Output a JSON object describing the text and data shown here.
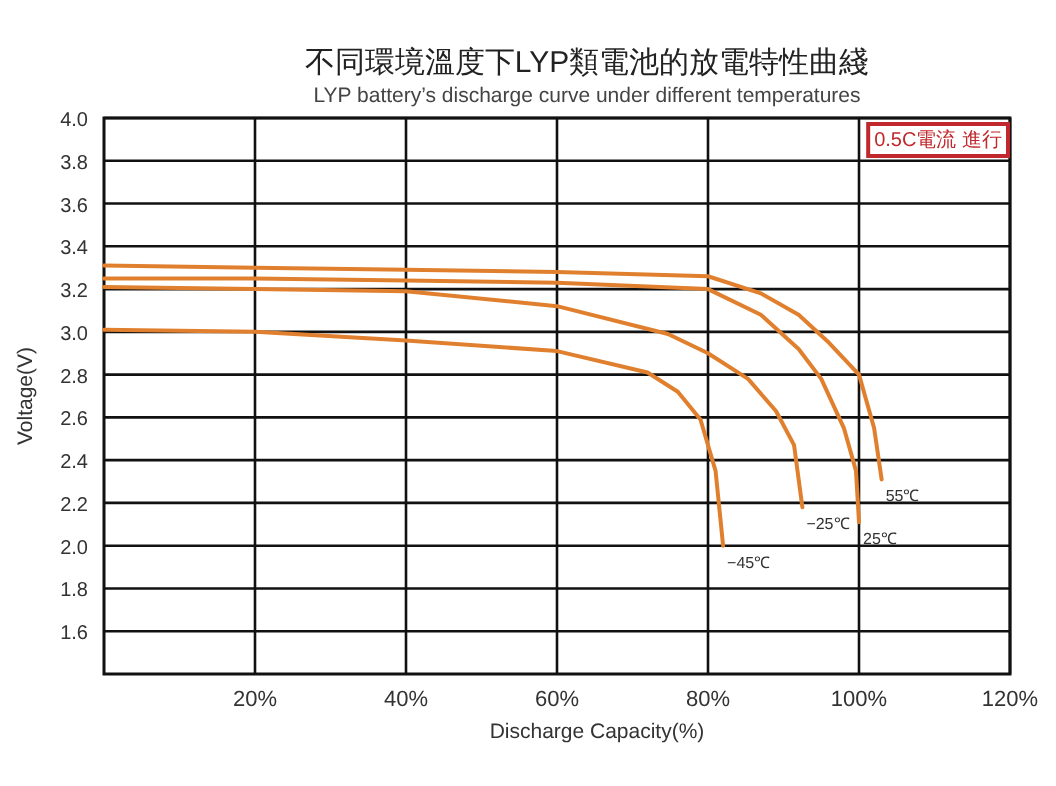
{
  "chart_data": {
    "type": "line",
    "title": "不同環境溫度下LYP類電池的放電特性曲綫",
    "subtitle": "LYP battery’s discharge curve under different temperatures",
    "xlabel": "Discharge Capacity(%)",
    "ylabel": "Voltage(V)",
    "annotations": [
      "0.5C電流 進行"
    ],
    "xlim": [
      0,
      120
    ],
    "xticks": [
      {
        "value": 20,
        "label": "20%"
      },
      {
        "value": 40,
        "label": "40%"
      },
      {
        "value": 60,
        "label": "60%"
      },
      {
        "value": 80,
        "label": "80%"
      },
      {
        "value": 100,
        "label": "100%"
      },
      {
        "value": 120,
        "label": "120%"
      }
    ],
    "ylim": [
      1.4,
      4.0
    ],
    "yticks": [
      1.6,
      1.8,
      {
        "value": 2.0,
        "label": "2.0"
      },
      2.2,
      2.4,
      2.6,
      2.8,
      {
        "value": 3.0,
        "label": "3.0"
      },
      3.2,
      3.4,
      3.6,
      3.8,
      {
        "value": 4.0,
        "label": "4.0"
      }
    ],
    "grid": true,
    "series": [
      {
        "name": "55℃",
        "color": "#e0802e",
        "x": [
          0,
          20,
          40,
          60,
          80,
          87,
          92,
          96,
          100,
          102,
          103
        ],
        "values": [
          3.31,
          3.3,
          3.29,
          3.28,
          3.26,
          3.18,
          3.08,
          2.95,
          2.8,
          2.55,
          2.31
        ]
      },
      {
        "name": "25℃",
        "color": "#e0802e",
        "x": [
          0,
          20,
          40,
          60,
          80,
          87,
          92,
          95,
          98,
          99.6,
          100
        ],
        "values": [
          3.25,
          3.25,
          3.24,
          3.23,
          3.2,
          3.08,
          2.92,
          2.78,
          2.55,
          2.35,
          2.11
        ]
      },
      {
        "name": "−25℃",
        "color": "#e0802e",
        "x": [
          0,
          20,
          40,
          60,
          74.7,
          80,
          85.3,
          89,
          91.4,
          92.5
        ],
        "values": [
          3.21,
          3.2,
          3.19,
          3.12,
          2.99,
          2.9,
          2.78,
          2.63,
          2.47,
          2.18
        ]
      },
      {
        "name": "−45℃",
        "color": "#e0802e",
        "x": [
          0,
          20,
          40,
          60,
          72,
          76,
          79,
          81,
          82
        ],
        "values": [
          3.01,
          3.0,
          2.96,
          2.91,
          2.81,
          2.72,
          2.59,
          2.35,
          2.0
        ]
      }
    ]
  }
}
